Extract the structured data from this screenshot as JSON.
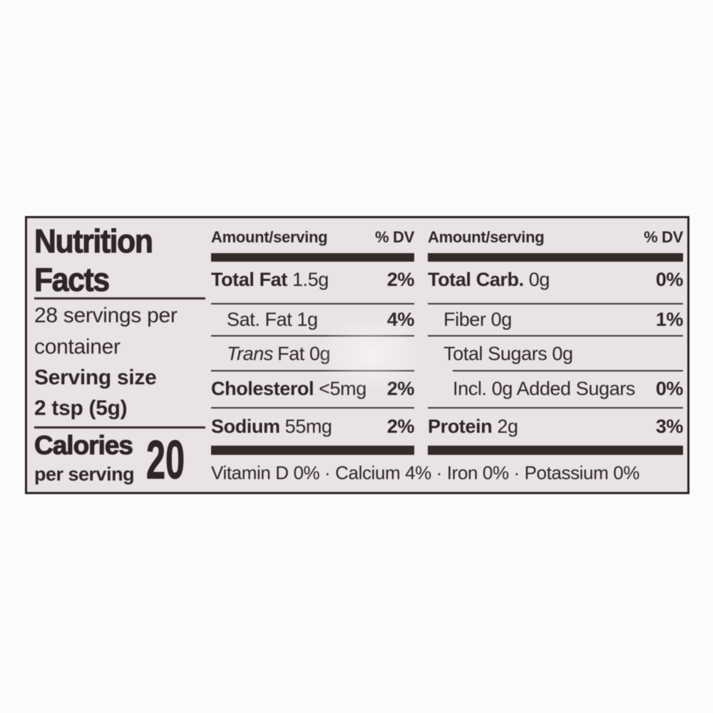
{
  "nutrition_label": {
    "title": {
      "line1": "Nutrition",
      "line2": "Facts"
    },
    "servings": {
      "line1": "28 servings per",
      "line2": "container"
    },
    "serving_size": {
      "label": "Serving size",
      "value": "2 tsp (5g)"
    },
    "calories": {
      "label": "Calories",
      "sublabel": "per serving",
      "value": "20"
    },
    "col1": {
      "header": {
        "amount": "Amount/serving",
        "dv": "% DV"
      },
      "rows": {
        "total_fat": {
          "name": "Total Fat",
          "amount": "1.5g",
          "dv": "2%"
        },
        "sat_fat": {
          "name": "Sat. Fat",
          "amount": "1g",
          "dv": "4%"
        },
        "trans_fat": {
          "name_italic": "Trans",
          "name_rest": "Fat",
          "amount": "0g"
        },
        "cholesterol": {
          "name": "Cholesterol",
          "amount": "<5mg",
          "dv": "2%"
        },
        "sodium": {
          "name": "Sodium",
          "amount": "55mg",
          "dv": "2%"
        }
      }
    },
    "col2": {
      "header": {
        "amount": "Amount/serving",
        "dv": "% DV"
      },
      "rows": {
        "total_carb": {
          "name": "Total Carb.",
          "amount": "0g",
          "dv": "0%"
        },
        "fiber": {
          "name": "Fiber",
          "amount": "0g",
          "dv": "1%"
        },
        "total_sugars": {
          "name": "Total Sugars",
          "amount": "0g"
        },
        "added_sugars": {
          "name": "Incl. 0g Added Sugars",
          "dv": "0%"
        },
        "protein": {
          "name": "Protein",
          "amount": "2g",
          "dv": "3%"
        }
      }
    },
    "footer": "Vitamin D 0% · Calcium 4% · Iron 0% · Potassium 0%",
    "colors": {
      "label_background": "#e9e3e6",
      "ink": "#2d2527",
      "bar": "#342b29"
    }
  }
}
